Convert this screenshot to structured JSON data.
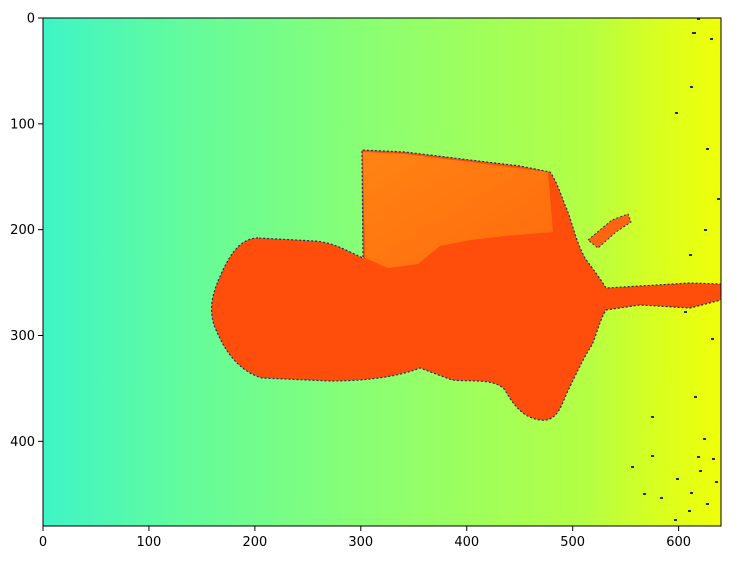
{
  "chart_data": {
    "type": "heatmap",
    "title": "",
    "xlabel": "",
    "ylabel": "",
    "image_shape": [
      480,
      640
    ],
    "xlim": [
      0,
      640
    ],
    "ylim": [
      480,
      0
    ],
    "x_ticks": [
      0,
      100,
      200,
      300,
      400,
      500,
      600
    ],
    "y_ticks": [
      0,
      100,
      200,
      300,
      400
    ],
    "colormap": "jet",
    "grid": false,
    "legend": "none",
    "colors": {
      "far_left": "#40ffc0",
      "mid_background": "#90ff66",
      "right_background": "#e8ff10",
      "object_main": "#ff4a0c",
      "object_top_block": "#ff7a10",
      "edge_noise": "#1a3060"
    },
    "regions": [
      {
        "name": "background",
        "description": "depth gradient increasing left to right"
      },
      {
        "name": "object",
        "description": "near object (orange-red) with horizontal protrusion toward right edge"
      }
    ]
  }
}
